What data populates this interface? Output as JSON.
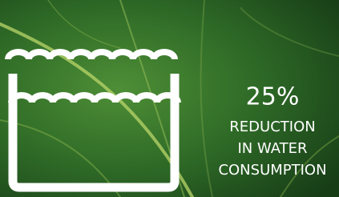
{
  "headline": {
    "figure": "25%",
    "lines": [
      "REDUCTION",
      "IN WATER",
      "CONSUMPTION"
    ]
  }
}
